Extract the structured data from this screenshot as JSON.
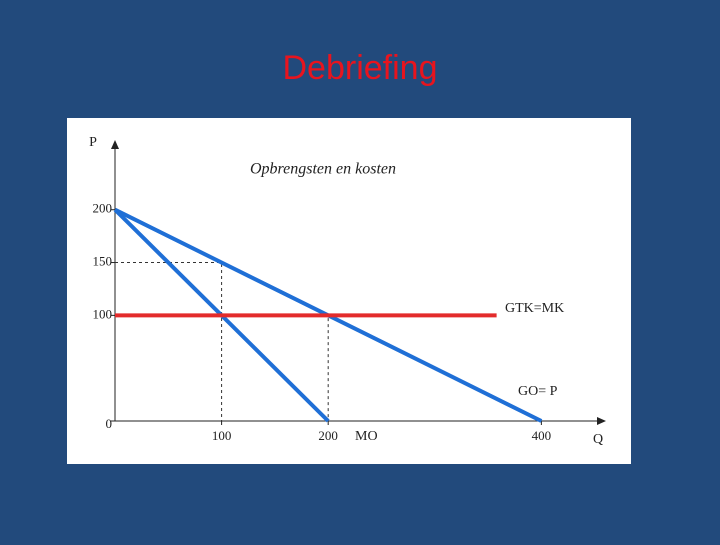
{
  "title": "Debriefing",
  "chart_data": {
    "type": "line",
    "title": "Opbrengsten en kosten",
    "y_label": "P",
    "x_label": "Q",
    "xlim": [
      0,
      455
    ],
    "ylim": [
      0,
      266
    ],
    "xticks": [
      100,
      200,
      400
    ],
    "yticks": [
      0,
      100,
      150,
      200
    ],
    "series": [
      {
        "name": "GO= P",
        "color": "#1f6fd6",
        "x": [
          0,
          400
        ],
        "values": [
          200,
          0
        ]
      },
      {
        "name": "MO",
        "color": "#1f6fd6",
        "x": [
          0,
          200
        ],
        "values": [
          200,
          0
        ]
      },
      {
        "name": "GTK=MK",
        "color": "#e32b2b",
        "x": [
          0,
          358
        ],
        "values": [
          100,
          100
        ]
      }
    ],
    "guides": [
      {
        "x": 100,
        "y": 150
      },
      {
        "x": 200,
        "y": 100
      }
    ]
  }
}
